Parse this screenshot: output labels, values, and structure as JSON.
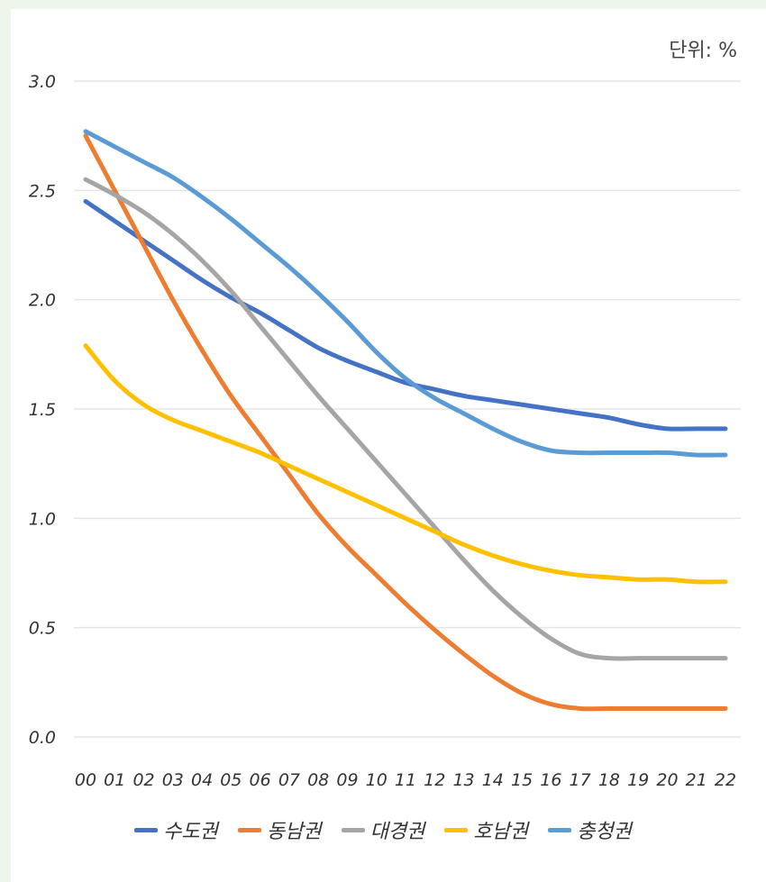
{
  "unit_label": "단위: %",
  "chart_data": {
    "type": "line",
    "title": "",
    "xlabel": "",
    "ylabel": "",
    "ylim": [
      0,
      3.0
    ],
    "yticks": [
      "0.0",
      "0.5",
      "1.0",
      "1.5",
      "2.0",
      "2.5",
      "3.0"
    ],
    "categories": [
      "00",
      "01",
      "02",
      "03",
      "04",
      "05",
      "06",
      "07",
      "08",
      "09",
      "10",
      "11",
      "12",
      "13",
      "14",
      "15",
      "16",
      "17",
      "18",
      "19",
      "20",
      "21",
      "22"
    ],
    "grid": true,
    "legend_position": "bottom",
    "series": [
      {
        "name": "수도권",
        "color": "#4472c4",
        "values": [
          2.45,
          2.36,
          2.27,
          2.18,
          2.09,
          2.01,
          1.94,
          1.86,
          1.78,
          1.72,
          1.67,
          1.62,
          1.59,
          1.56,
          1.54,
          1.52,
          1.5,
          1.48,
          1.46,
          1.43,
          1.41,
          1.41,
          1.41
        ]
      },
      {
        "name": "동남권",
        "color": "#ed7d31",
        "values": [
          2.75,
          2.5,
          2.25,
          2.0,
          1.77,
          1.56,
          1.38,
          1.2,
          1.02,
          0.87,
          0.74,
          0.61,
          0.49,
          0.38,
          0.28,
          0.2,
          0.15,
          0.13,
          0.13,
          0.13,
          0.13,
          0.13,
          0.13
        ]
      },
      {
        "name": "대경권",
        "color": "#a5a5a5",
        "values": [
          2.55,
          2.48,
          2.4,
          2.3,
          2.18,
          2.04,
          1.88,
          1.72,
          1.56,
          1.41,
          1.26,
          1.11,
          0.96,
          0.81,
          0.67,
          0.55,
          0.45,
          0.38,
          0.36,
          0.36,
          0.36,
          0.36,
          0.36
        ]
      },
      {
        "name": "호남권",
        "color": "#ffc000",
        "values": [
          1.79,
          1.63,
          1.52,
          1.45,
          1.4,
          1.35,
          1.3,
          1.24,
          1.18,
          1.12,
          1.06,
          1.0,
          0.94,
          0.88,
          0.83,
          0.79,
          0.76,
          0.74,
          0.73,
          0.72,
          0.72,
          0.71,
          0.71
        ]
      },
      {
        "name": "충청권",
        "color": "#5b9bd5",
        "values": [
          2.77,
          2.7,
          2.63,
          2.56,
          2.47,
          2.37,
          2.26,
          2.15,
          2.03,
          1.9,
          1.76,
          1.64,
          1.55,
          1.48,
          1.41,
          1.35,
          1.31,
          1.3,
          1.3,
          1.3,
          1.3,
          1.29,
          1.29
        ]
      }
    ]
  }
}
